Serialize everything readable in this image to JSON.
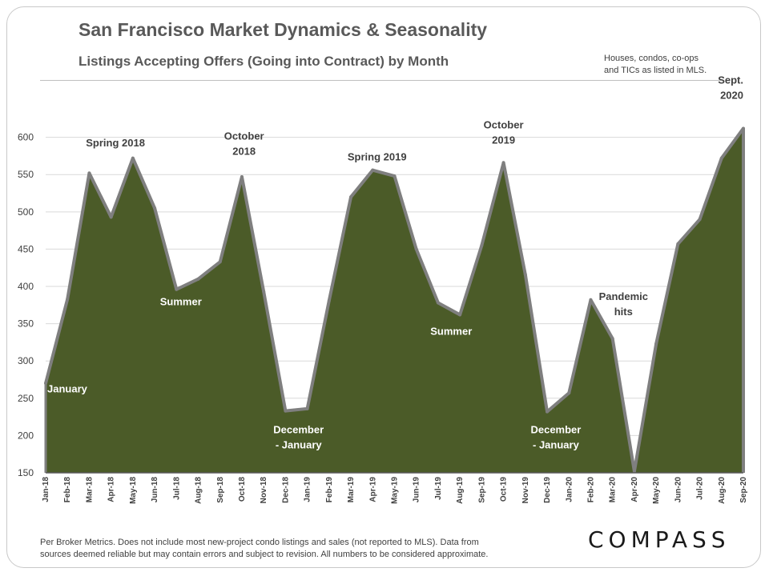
{
  "title": "San Francisco Market Dynamics & Seasonality",
  "subtitle": "Listings Accepting Offers (Going into Contract) by Month",
  "note": [
    "Houses, condos, co-ops",
    "and TICs as listed in MLS."
  ],
  "footer": [
    "Per Broker Metrics. Does not include most new-project condo listings and sales (not reported to MLS). Data from",
    "sources deemed reliable but may contain errors and subject to revision.  All numbers to be considered approximate."
  ],
  "logo": "COMPASS",
  "colors": {
    "area": "#4b5b28",
    "line": "#7f7f7f",
    "grid": "#d9d9d9",
    "dark_text": "#404040",
    "light_text": "#ffffff"
  },
  "chart_data": {
    "type": "area",
    "title": "Listings Accepting Offers (Going into Contract) by Month",
    "xlabel": "",
    "ylabel": "",
    "ylim": [
      150,
      620
    ],
    "yticks": [
      150,
      200,
      250,
      300,
      350,
      400,
      450,
      500,
      550,
      600
    ],
    "grid": true,
    "categories": [
      "Jan-18",
      "Feb-18",
      "Mar-18",
      "Apr-18",
      "May-18",
      "Jun-18",
      "Jul-18",
      "Aug-18",
      "Sep-18",
      "Oct-18",
      "Nov-18",
      "Dec-18",
      "Jan-19",
      "Feb-19",
      "Mar-19",
      "Apr-19",
      "May-19",
      "Jun-19",
      "Jul-19",
      "Aug-19",
      "Sep-19",
      "Oct-19",
      "Nov-19",
      "Dec-19",
      "Jan-20",
      "Feb-20",
      "Mar-20",
      "Apr-20",
      "May-20",
      "Jun-20",
      "Jul-20",
      "Aug-20",
      "Sep-20"
    ],
    "values": [
      270,
      383,
      552,
      493,
      572,
      505,
      396,
      410,
      433,
      547,
      393,
      233,
      236,
      381,
      520,
      556,
      548,
      450,
      378,
      362,
      455,
      566,
      416,
      232,
      257,
      382,
      330,
      152,
      323,
      457,
      490,
      572,
      612
    ],
    "annotations": [
      {
        "lines": [
          "January"
        ],
        "index": 0,
        "value": 258,
        "color": "light",
        "anchor": "start"
      },
      {
        "lines": [
          "Spring 2018"
        ],
        "index": 3.2,
        "value": 588,
        "color": "dark",
        "anchor": "middle"
      },
      {
        "lines": [
          "Summer"
        ],
        "index": 6.2,
        "value": 375,
        "color": "light",
        "anchor": "middle"
      },
      {
        "lines": [
          "October",
          "2018"
        ],
        "index": 9.1,
        "value": 597,
        "color": "dark",
        "anchor": "middle"
      },
      {
        "lines": [
          "December",
          "- January"
        ],
        "index": 11.6,
        "value": 203,
        "color": "light",
        "anchor": "middle"
      },
      {
        "lines": [
          "Spring 2019"
        ],
        "index": 15.2,
        "value": 569,
        "color": "dark",
        "anchor": "middle"
      },
      {
        "lines": [
          "Summer"
        ],
        "index": 18.6,
        "value": 335,
        "color": "light",
        "anchor": "middle"
      },
      {
        "lines": [
          "October",
          "2019"
        ],
        "index": 21,
        "value": 612,
        "color": "dark",
        "anchor": "middle"
      },
      {
        "lines": [
          "December",
          "- January"
        ],
        "index": 23.4,
        "value": 203,
        "color": "light",
        "anchor": "middle"
      },
      {
        "lines": [
          "Pandemic",
          "hits"
        ],
        "index": 26.5,
        "value": 382,
        "color": "dark",
        "anchor": "middle"
      },
      {
        "lines": [
          "Sept.",
          "2020"
        ],
        "index": 32,
        "value": 672,
        "color": "dark",
        "anchor": "end"
      }
    ]
  }
}
